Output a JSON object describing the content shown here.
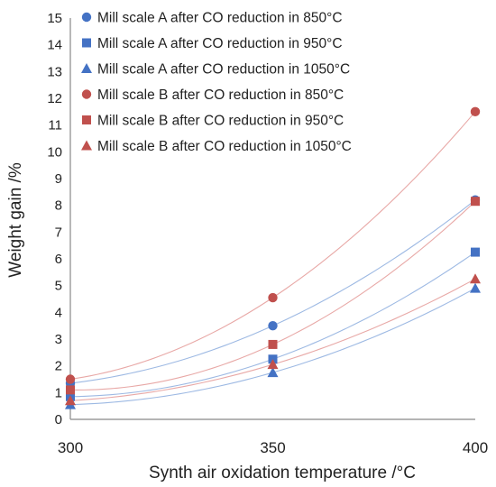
{
  "chart_data": {
    "type": "scatter",
    "xlabel": "Synth air oxidation temperature /°C",
    "ylabel": "Weight gain /%",
    "xlim": [
      300,
      400
    ],
    "ylim": [
      0,
      15
    ],
    "x_ticks": [
      "300",
      "350",
      "400"
    ],
    "y_ticks": [
      "0",
      "1",
      "2",
      "3",
      "4",
      "5",
      "6",
      "7",
      "8",
      "9",
      "10",
      "11",
      "12",
      "13",
      "14",
      "15"
    ],
    "x": [
      300,
      350,
      400
    ],
    "grid": false,
    "trendlines": "polynomial (quadratic) fit per series",
    "legend_position": "top-left",
    "series": [
      {
        "name": "Mill scale A after CO reduction in 850°C",
        "marker": "circle",
        "color": "#4472C4",
        "trend_color": "#9DB9E3",
        "values": [
          1.35,
          3.5,
          8.2
        ]
      },
      {
        "name": "Mill scale A after CO reduction in 950°C",
        "marker": "square",
        "color": "#4472C4",
        "trend_color": "#9DB9E3",
        "values": [
          0.85,
          2.25,
          6.25
        ]
      },
      {
        "name": "Mill scale A after CO reduction in 1050°C",
        "marker": "triangle",
        "color": "#4472C4",
        "trend_color": "#9DB9E3",
        "values": [
          0.55,
          1.75,
          4.9
        ]
      },
      {
        "name": "Mill scale B after CO reduction in 850°C",
        "marker": "circle",
        "color": "#C0504D",
        "trend_color": "#E8A8A6",
        "values": [
          1.5,
          4.55,
          11.5
        ]
      },
      {
        "name": "Mill scale B after CO reduction in 950°C",
        "marker": "square",
        "color": "#C0504D",
        "trend_color": "#E8A8A6",
        "values": [
          1.1,
          2.8,
          8.15
        ]
      },
      {
        "name": "Mill scale B after CO reduction in 1050°C",
        "marker": "triangle",
        "color": "#C0504D",
        "trend_color": "#E8A8A6",
        "values": [
          0.7,
          2.05,
          5.25
        ]
      }
    ]
  }
}
